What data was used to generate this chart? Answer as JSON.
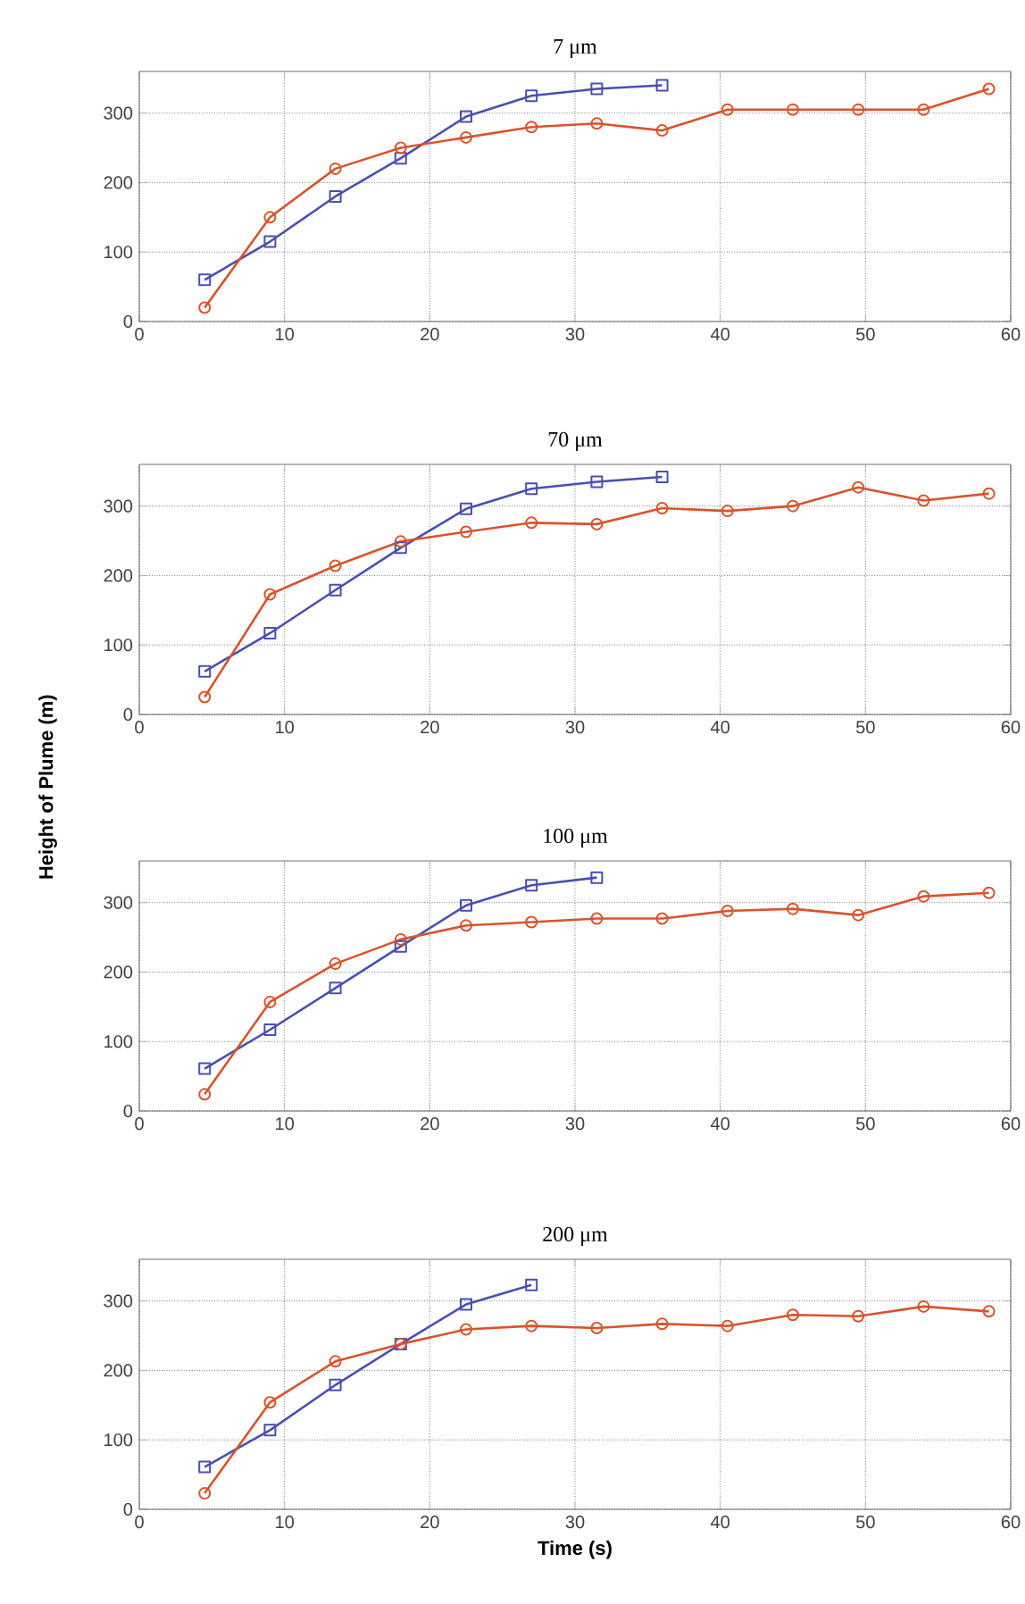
{
  "chart_data": [
    {
      "type": "line",
      "title": "7 μm",
      "x": [
        4.5,
        9,
        13.5,
        18,
        22.5,
        27,
        31.5,
        36,
        40.5,
        45,
        49.5,
        54,
        58.5
      ],
      "xlim": [
        0,
        60
      ],
      "xticks": [
        0,
        10,
        20,
        30,
        40,
        50,
        60
      ],
      "ylim": [
        0,
        360
      ],
      "yticks": [
        0,
        100,
        200,
        300
      ],
      "grid": true,
      "series": [
        {
          "color": "#4a4fb0",
          "marker": "square",
          "values": [
            60,
            115,
            180,
            235,
            295,
            325,
            335,
            340,
            null,
            null,
            null,
            null,
            null
          ]
        },
        {
          "color": "#d9542b",
          "marker": "circle",
          "values": [
            20,
            150,
            220,
            250,
            265,
            280,
            285,
            275,
            305,
            305,
            305,
            305,
            335
          ]
        }
      ]
    },
    {
      "type": "line",
      "title": "70 μm",
      "ylabel": "Height of Plume (m)",
      "x": [
        4.5,
        9,
        13.5,
        18,
        22.5,
        27,
        31.5,
        36,
        40.5,
        45,
        49.5,
        54,
        58.5
      ],
      "xlim": [
        0,
        60
      ],
      "xticks": [
        0,
        10,
        20,
        30,
        40,
        50,
        60
      ],
      "ylim": [
        0,
        360
      ],
      "yticks": [
        0,
        100,
        200,
        300
      ],
      "grid": true,
      "series": [
        {
          "color": "#4a4fb0",
          "marker": "square",
          "values": [
            62,
            117,
            179,
            240,
            296,
            325,
            335,
            342,
            null,
            null,
            null,
            null,
            null
          ]
        },
        {
          "color": "#d9542b",
          "marker": "circle",
          "values": [
            25,
            173,
            214,
            249,
            263,
            276,
            274,
            297,
            293,
            300,
            327,
            308,
            318
          ]
        }
      ]
    },
    {
      "type": "line",
      "title": "100 μm",
      "x": [
        4.5,
        9,
        13.5,
        18,
        22.5,
        27,
        31.5,
        36,
        40.5,
        45,
        49.5,
        54,
        58.5
      ],
      "xlim": [
        0,
        60
      ],
      "xticks": [
        0,
        10,
        20,
        30,
        40,
        50,
        60
      ],
      "ylim": [
        0,
        360
      ],
      "yticks": [
        0,
        100,
        200,
        300
      ],
      "grid": true,
      "series": [
        {
          "color": "#4a4fb0",
          "marker": "square",
          "values": [
            61,
            117,
            177,
            237,
            296,
            325,
            336,
            null,
            null,
            null,
            null,
            null,
            null
          ]
        },
        {
          "color": "#d9542b",
          "marker": "circle",
          "values": [
            24,
            157,
            212,
            247,
            267,
            272,
            277,
            277,
            288,
            291,
            282,
            309,
            314
          ]
        }
      ]
    },
    {
      "type": "line",
      "title": "200 μm",
      "xlabel": "Time (s)",
      "x": [
        4.5,
        9,
        13.5,
        18,
        22.5,
        27,
        31.5,
        36,
        40.5,
        45,
        49.5,
        54,
        58.5
      ],
      "xlim": [
        0,
        60
      ],
      "xticks": [
        0,
        10,
        20,
        30,
        40,
        50,
        60
      ],
      "ylim": [
        0,
        360
      ],
      "yticks": [
        0,
        100,
        200,
        300
      ],
      "grid": true,
      "series": [
        {
          "color": "#4a4fb0",
          "marker": "square",
          "values": [
            61,
            114,
            179,
            238,
            295,
            323,
            null,
            null,
            null,
            null,
            null,
            null,
            null
          ]
        },
        {
          "color": "#d9542b",
          "marker": "circle",
          "values": [
            23,
            154,
            213,
            238,
            259,
            264,
            261,
            267,
            264,
            280,
            278,
            292,
            285
          ]
        }
      ]
    }
  ]
}
